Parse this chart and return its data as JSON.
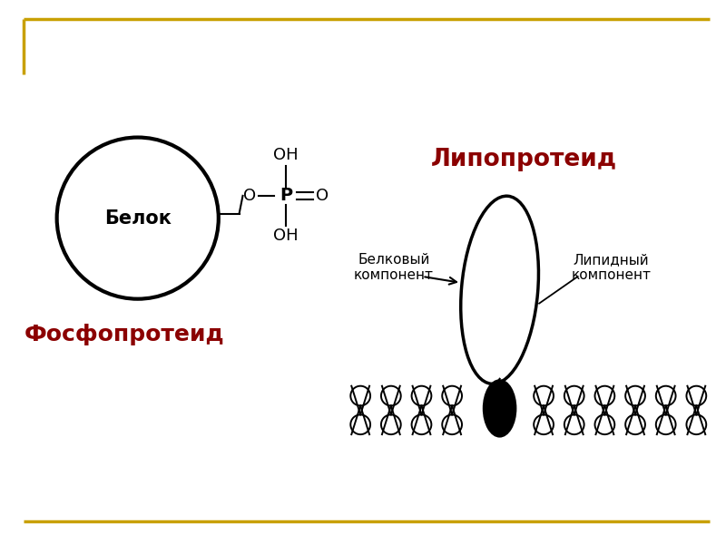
{
  "bg_color": "#ffffff",
  "border_color": "#c8a000",
  "black_color": "#000000",
  "red_color": "#8b0000",
  "phospho_label": "Фосфопротеид",
  "lipopro_label": "Липопротеид",
  "belok_label": "Белок",
  "belk_comp_label": "Белковый\nкомпонент",
  "lipid_comp_label": "Липидный\nкомпонент"
}
